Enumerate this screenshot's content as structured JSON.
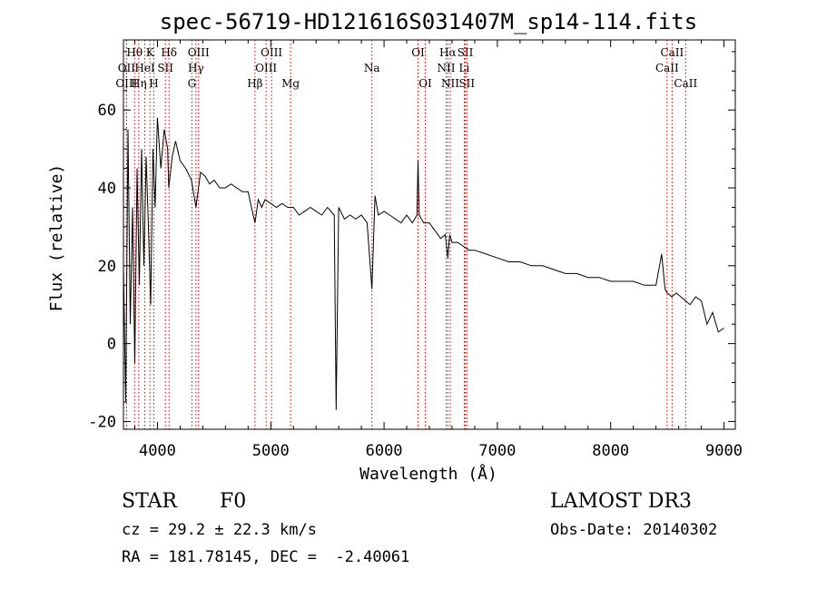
{
  "chart_data": {
    "type": "line",
    "title": "spec-56719-HD121616S031407M_sp14-114.fits",
    "xlabel": "Wavelength (Å)",
    "ylabel": "Flux (relative)",
    "xlim": [
      3700,
      9100
    ],
    "ylim": [
      -22,
      78
    ],
    "xticks": [
      4000,
      5000,
      6000,
      7000,
      8000,
      9000
    ],
    "yticks": [
      -20,
      0,
      20,
      40,
      60
    ],
    "series": [
      {
        "name": "flux",
        "x": [
          3700,
          3720,
          3740,
          3760,
          3780,
          3800,
          3820,
          3840,
          3860,
          3880,
          3900,
          3920,
          3940,
          3960,
          3980,
          4000,
          4030,
          4060,
          4090,
          4100,
          4130,
          4160,
          4200,
          4250,
          4300,
          4340,
          4380,
          4420,
          4460,
          4500,
          4550,
          4600,
          4650,
          4700,
          4750,
          4800,
          4830,
          4861,
          4890,
          4920,
          4950,
          5000,
          5050,
          5100,
          5150,
          5200,
          5250,
          5300,
          5350,
          5400,
          5450,
          5500,
          5560,
          5577,
          5600,
          5650,
          5700,
          5750,
          5800,
          5850,
          5893,
          5920,
          5950,
          6000,
          6050,
          6100,
          6150,
          6200,
          6250,
          6290,
          6300,
          6310,
          6350,
          6400,
          6450,
          6500,
          6540,
          6563,
          6580,
          6600,
          6650,
          6700,
          6750,
          6800,
          6900,
          7000,
          7100,
          7200,
          7300,
          7400,
          7500,
          7600,
          7700,
          7800,
          7900,
          8000,
          8100,
          8200,
          8300,
          8400,
          8450,
          8480,
          8500,
          8540,
          8580,
          8620,
          8660,
          8700,
          8750,
          8800,
          8850,
          8900,
          8950,
          9000
        ],
        "y": [
          20,
          -15,
          55,
          5,
          35,
          -5,
          45,
          15,
          50,
          20,
          48,
          30,
          10,
          50,
          35,
          58,
          45,
          55,
          50,
          40,
          48,
          52,
          47,
          45,
          42,
          35,
          44,
          43,
          41,
          42,
          40,
          40,
          41,
          40,
          39,
          39,
          35,
          31,
          37,
          35,
          37,
          36,
          35,
          36,
          35,
          35,
          33,
          34,
          35,
          34,
          33,
          35,
          33,
          -17,
          35,
          32,
          33,
          32,
          33,
          31,
          14,
          38,
          33,
          34,
          33,
          32,
          31,
          33,
          31,
          33,
          47,
          33,
          31,
          31,
          29,
          27,
          28,
          22,
          28,
          26,
          26,
          25,
          24,
          24,
          23,
          22,
          21,
          21,
          20,
          20,
          19,
          18,
          18,
          17,
          17,
          16,
          16,
          16,
          15,
          15,
          23,
          14,
          13,
          12,
          13,
          12,
          11,
          10,
          12,
          11,
          5,
          8,
          3,
          4
        ]
      }
    ],
    "lines": [
      {
        "name": "Hθ",
        "x": 3798,
        "row": 0
      },
      {
        "name": "OII",
        "x": 3727,
        "row": 1
      },
      {
        "name": "OIII",
        "x": 3727,
        "row": 2
      },
      {
        "name": "K",
        "x": 3934,
        "row": 0
      },
      {
        "name": "HeI",
        "x": 3889,
        "row": 1
      },
      {
        "name": "Hη",
        "x": 3835,
        "row": 2
      },
      {
        "name": "Hδ",
        "x": 4102,
        "row": 0
      },
      {
        "name": "SII",
        "x": 4070,
        "row": 1
      },
      {
        "name": "H",
        "x": 3968,
        "row": 2
      },
      {
        "name": "OIII",
        "x": 4363,
        "row": 0
      },
      {
        "name": "Hγ",
        "x": 4340,
        "row": 1
      },
      {
        "name": "G",
        "x": 4304,
        "row": 2
      },
      {
        "name": "Hβ",
        "x": 4861,
        "row": 2
      },
      {
        "name": "OIII",
        "x": 5007,
        "row": 0
      },
      {
        "name": "OIII",
        "x": 4959,
        "row": 1
      },
      {
        "name": "Mg",
        "x": 5175,
        "row": 2
      },
      {
        "name": "Na",
        "x": 5893,
        "row": 1
      },
      {
        "name": "OI",
        "x": 6300,
        "row": 0
      },
      {
        "name": "OI",
        "x": 6364,
        "row": 2
      },
      {
        "name": "Hα",
        "x": 6563,
        "row": 0
      },
      {
        "name": "NII",
        "x": 6548,
        "row": 1
      },
      {
        "name": "NII",
        "x": 6584,
        "row": 2
      },
      {
        "name": "SII",
        "x": 6717,
        "row": 0
      },
      {
        "name": "Li",
        "x": 6708,
        "row": 1
      },
      {
        "name": "SII",
        "x": 6731,
        "row": 2
      },
      {
        "name": "CaII",
        "x": 8542,
        "row": 0
      },
      {
        "name": "CaII",
        "x": 8498,
        "row": 1
      },
      {
        "name": "CaII",
        "x": 8662,
        "row": 2
      }
    ]
  },
  "info": {
    "class": "STAR",
    "subclass": "F0",
    "survey": "LAMOST DR3",
    "cz": "cz = 29.2 ± 22.3 km/s",
    "obs_date": "Obs-Date: 20140302",
    "radec": "RA = 181.78145, DEC =  -2.40061"
  },
  "colors": {
    "axis": "#000000",
    "line_marker": "#cc0000",
    "spectrum": "#000000"
  }
}
